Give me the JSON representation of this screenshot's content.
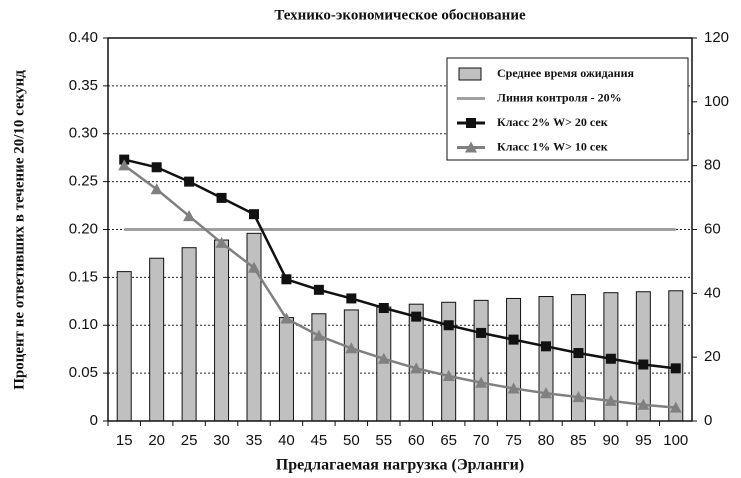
{
  "chart_data": {
    "type": "bar",
    "title": "Технико-экономическое обоснование",
    "x_label": "Предлагаемая нагрузка (Эрланги)",
    "y_label": "Процент не ответивших в течение 20/10 секунд",
    "categories": [
      "15",
      "20",
      "25",
      "30",
      "35",
      "40",
      "45",
      "50",
      "55",
      "60",
      "65",
      "70",
      "75",
      "80",
      "85",
      "90",
      "95",
      "100"
    ],
    "series": [
      {
        "name": "Среднее время ожидания",
        "type": "bar",
        "axis": "y2",
        "color": "#c0c0c0",
        "values": [
          46.8,
          51,
          54.3,
          56.7,
          58.8,
          32.4,
          33.6,
          34.8,
          35.7,
          36.6,
          37.2,
          37.8,
          38.4,
          39,
          39.6,
          40.2,
          40.5,
          40.8
        ]
      },
      {
        "name": "Линия контроля - 20%",
        "type": "line",
        "color": "#a0a0a0",
        "values": [
          0.2,
          0.2,
          0.2,
          0.2,
          0.2,
          0.2,
          0.2,
          0.2,
          0.2,
          0.2,
          0.2,
          0.2,
          0.2,
          0.2,
          0.2,
          0.2,
          0.2,
          0.2
        ]
      },
      {
        "name": "Класс 2% W> 20 сек",
        "type": "line",
        "color": "#111111",
        "marker": "square",
        "values": [
          0.273,
          0.265,
          0.25,
          0.233,
          0.216,
          0.148,
          0.137,
          0.128,
          0.118,
          0.109,
          0.1,
          0.092,
          0.085,
          0.078,
          0.071,
          0.065,
          0.059,
          0.055
        ]
      },
      {
        "name": "Класс 1% W> 10 сек",
        "type": "line",
        "color": "#808080",
        "marker": "triangle",
        "values": [
          0.267,
          0.242,
          0.214,
          0.186,
          0.16,
          0.107,
          0.089,
          0.076,
          0.065,
          0.055,
          0.047,
          0.04,
          0.034,
          0.029,
          0.025,
          0.021,
          0.017,
          0.014
        ]
      }
    ],
    "ylim": [
      0,
      0.4
    ],
    "yticks": [
      0,
      0.05,
      {
        "value": 0.1,
        "label": "0.10"
      },
      0.15,
      {
        "value": 0.2,
        "label": "0.20"
      },
      0.25,
      {
        "value": 0.3,
        "label": "0.30"
      },
      0.35,
      {
        "value": 0.4,
        "label": "0.40"
      }
    ],
    "y2lim": [
      0,
      120
    ],
    "y2ticks": [
      0,
      20,
      40,
      60,
      80,
      100,
      120
    ],
    "grid": true,
    "legend": "upper right"
  }
}
